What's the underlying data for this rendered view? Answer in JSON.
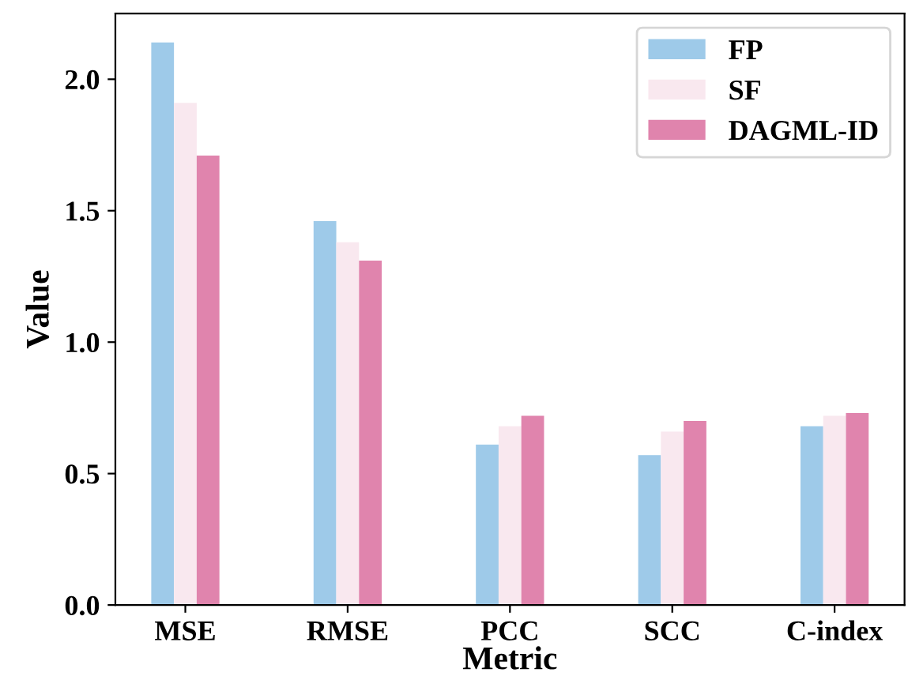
{
  "chart_data": {
    "type": "bar",
    "xlabel": "Metric",
    "ylabel": "Value",
    "categories": [
      "MSE",
      "RMSE",
      "PCC",
      "SCC",
      "C-index"
    ],
    "series": [
      {
        "name": "FP",
        "color": "#9ecae9",
        "values": [
          2.14,
          1.46,
          0.61,
          0.57,
          0.68
        ]
      },
      {
        "name": "SF",
        "color": "#f9e8ef",
        "values": [
          1.91,
          1.38,
          0.68,
          0.66,
          0.72
        ]
      },
      {
        "name": "DAGML-ID",
        "color": "#e084ad",
        "values": [
          1.71,
          1.31,
          0.72,
          0.7,
          0.73
        ]
      }
    ],
    "ylim": [
      0,
      2.25
    ],
    "yticks": [
      {
        "value": 0,
        "label": "0.0"
      },
      0.5,
      {
        "value": 1,
        "label": "1.0"
      },
      1.5,
      {
        "value": 2,
        "label": "2.0"
      }
    ],
    "grid": false,
    "legend": "top right"
  }
}
